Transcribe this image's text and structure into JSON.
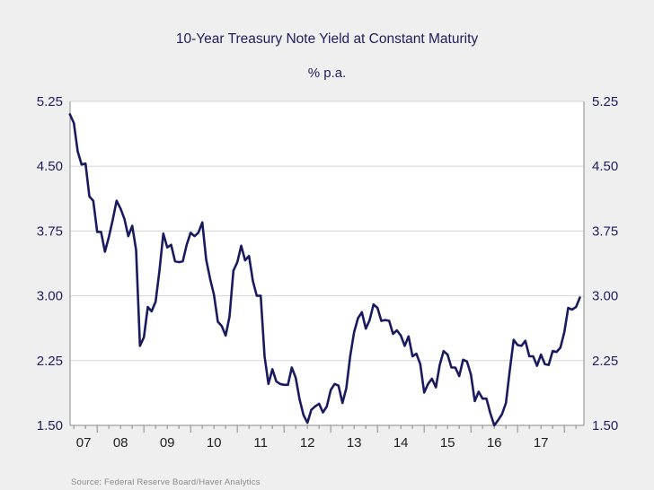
{
  "chart_data": {
    "type": "line",
    "title": "10-Year Treasury Note Yield at Constant Maturity",
    "subtitle": "% p.a.",
    "xlabel": "",
    "ylabel": "% p.a.",
    "source": "Source:  Federal Reserve Board/Haver Analytics",
    "ylim": [
      1.5,
      5.25
    ],
    "yticks": [
      "5.25",
      "4.50",
      "3.75",
      "3.00",
      "2.25",
      "1.50"
    ],
    "ytick_values": [
      5.25,
      4.5,
      3.75,
      3.0,
      2.25,
      1.5
    ],
    "xrange_years": [
      2007.42,
      2018.42
    ],
    "xtick_labels": [
      "07",
      "08",
      "09",
      "10",
      "11",
      "12",
      "13",
      "14",
      "15",
      "16",
      "17"
    ],
    "xtick_years": [
      2007,
      2008,
      2009,
      2010,
      2011,
      2012,
      2013,
      2014,
      2015,
      2016,
      2017
    ],
    "grid": true,
    "line_color": "#1a1a5e",
    "series": [
      {
        "name": "10-Year Treasury Note Yield",
        "start": "2007-06",
        "frequency": "monthly",
        "values": [
          5.1,
          5.0,
          4.67,
          4.52,
          4.53,
          4.15,
          4.1,
          3.74,
          3.74,
          3.51,
          3.68,
          3.88,
          4.1,
          4.01,
          3.89,
          3.69,
          3.81,
          3.53,
          2.42,
          2.52,
          2.87,
          2.82,
          2.93,
          3.29,
          3.72,
          3.56,
          3.59,
          3.4,
          3.39,
          3.4,
          3.59,
          3.73,
          3.69,
          3.73,
          3.85,
          3.42,
          3.2,
          3.01,
          2.7,
          2.65,
          2.54,
          2.76,
          3.29,
          3.39,
          3.58,
          3.41,
          3.46,
          3.17,
          3.0,
          3.0,
          2.3,
          1.98,
          2.15,
          2.01,
          1.98,
          1.97,
          1.97,
          2.17,
          2.05,
          1.8,
          1.62,
          1.53,
          1.68,
          1.72,
          1.75,
          1.65,
          1.72,
          1.91,
          1.98,
          1.96,
          1.76,
          1.93,
          2.3,
          2.58,
          2.74,
          2.81,
          2.62,
          2.72,
          2.9,
          2.86,
          2.71,
          2.72,
          2.71,
          2.56,
          2.6,
          2.54,
          2.42,
          2.53,
          2.3,
          2.33,
          2.21,
          1.88,
          1.98,
          2.04,
          1.94,
          2.2,
          2.36,
          2.32,
          2.17,
          2.17,
          2.07,
          2.26,
          2.24,
          2.09,
          1.78,
          1.89,
          1.81,
          1.81,
          1.64,
          1.5,
          1.56,
          1.63,
          1.76,
          2.14,
          2.49,
          2.43,
          2.42,
          2.48,
          2.3,
          2.3,
          2.19,
          2.32,
          2.21,
          2.2,
          2.36,
          2.35,
          2.4,
          2.58,
          2.86,
          2.84,
          2.87,
          2.98
        ]
      }
    ]
  }
}
